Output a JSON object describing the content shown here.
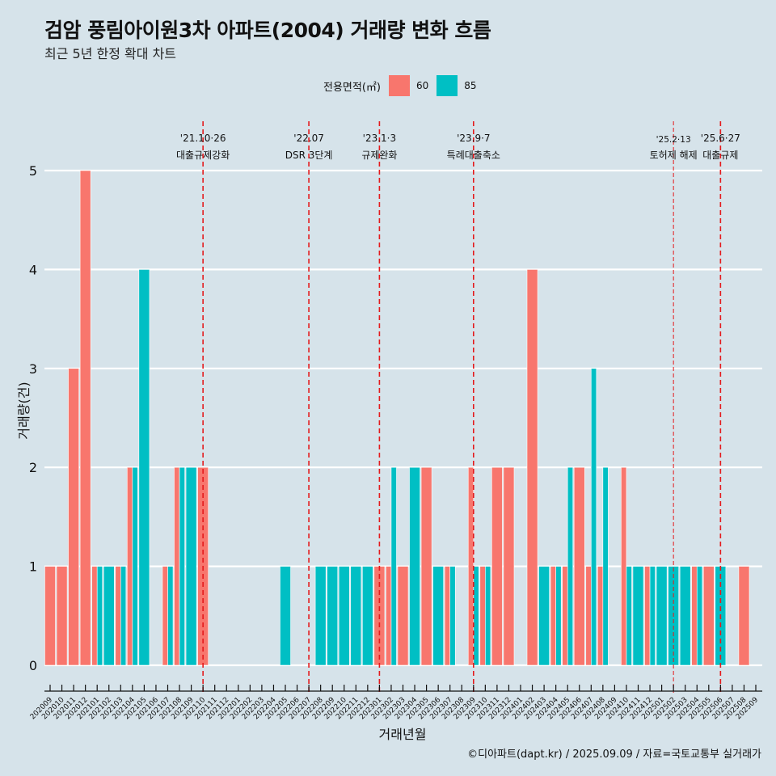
{
  "header": {
    "title": "검암 풍림아이원3차 아파트(2004) 거래량 변화 흐름",
    "subtitle": "최근 5년 한정 확대 차트"
  },
  "legend": {
    "title": "전용면적(㎡)",
    "items": [
      {
        "label": "60",
        "color": "#F8766D"
      },
      {
        "label": "85",
        "color": "#00BFC4"
      }
    ]
  },
  "footer": "©디아파트(dapt.kr) / 2025.09.09 / 자료=국토교통부 실거래가",
  "chart_data": {
    "type": "bar",
    "title": "검암 풍림아이원3차 아파트(2004) 거래량 변화 흐름",
    "subtitle": "최근 5년 한정 확대 차트",
    "xlabel": "거래년월",
    "ylabel": "거래량(건)",
    "ylim": [
      0,
      5
    ],
    "yticks": [
      0,
      1,
      2,
      3,
      4,
      5
    ],
    "grid": "horizontal",
    "legend_position": "top",
    "position": "dodge",
    "categories": [
      "202009",
      "202010",
      "202011",
      "202012",
      "202101",
      "202102",
      "202103",
      "202104",
      "202105",
      "202106",
      "202107",
      "202108",
      "202109",
      "202110",
      "202111",
      "202112",
      "202201",
      "202202",
      "202203",
      "202204",
      "202205",
      "202206",
      "202207",
      "202208",
      "202209",
      "202210",
      "202211",
      "202212",
      "202301",
      "202302",
      "202303",
      "202304",
      "202305",
      "202306",
      "202307",
      "202308",
      "202309",
      "202310",
      "202311",
      "202312",
      "202401",
      "202402",
      "202403",
      "202404",
      "202405",
      "202406",
      "202407",
      "202408",
      "202409",
      "202410",
      "202411",
      "202412",
      "202501",
      "202502",
      "202503",
      "202504",
      "202505",
      "202506",
      "202507",
      "202508",
      "202509"
    ],
    "series": [
      {
        "name": "60",
        "color": "#F8766D",
        "values": [
          1,
          1,
          3,
          5,
          1,
          0,
          1,
          2,
          0,
          0,
          1,
          2,
          0,
          2,
          0,
          0,
          0,
          0,
          0,
          0,
          0,
          0,
          0,
          0,
          0,
          0,
          0,
          0,
          1,
          1,
          1,
          0,
          2,
          0,
          1,
          0,
          2,
          1,
          2,
          2,
          0,
          4,
          0,
          1,
          1,
          2,
          1,
          1,
          0,
          2,
          0,
          1,
          0,
          0,
          0,
          1,
          1,
          0,
          0,
          1,
          0
        ]
      },
      {
        "name": "85",
        "color": "#00BFC4",
        "values": [
          0,
          0,
          0,
          0,
          1,
          1,
          1,
          2,
          4,
          0,
          1,
          2,
          2,
          0,
          0,
          0,
          0,
          0,
          0,
          0,
          1,
          0,
          0,
          1,
          1,
          1,
          1,
          1,
          0,
          2,
          0,
          2,
          0,
          1,
          1,
          0,
          1,
          1,
          0,
          0,
          0,
          0,
          1,
          1,
          2,
          0,
          3,
          2,
          0,
          1,
          1,
          1,
          1,
          1,
          1,
          1,
          0,
          1,
          0,
          0,
          0
        ]
      }
    ],
    "events": [
      {
        "month": "202110",
        "date": "'21.10·26",
        "label": "대출규제강화",
        "style": "major"
      },
      {
        "month": "202207",
        "date": "'22.07",
        "label": "DSR 3단계",
        "style": "major"
      },
      {
        "month": "202301",
        "date": "'23.1·3",
        "label": "규제완화",
        "style": "major"
      },
      {
        "month": "202309",
        "date": "'23.9·7",
        "label": "특례대출축소",
        "style": "major"
      },
      {
        "month": "202502",
        "date": "'25.2·13",
        "label": "토허제 해제",
        "style": "minor"
      },
      {
        "month": "202506",
        "date": "'25.6·27",
        "label": "대출규제",
        "style": "major"
      }
    ],
    "event_line_color": "#E41A1C"
  }
}
